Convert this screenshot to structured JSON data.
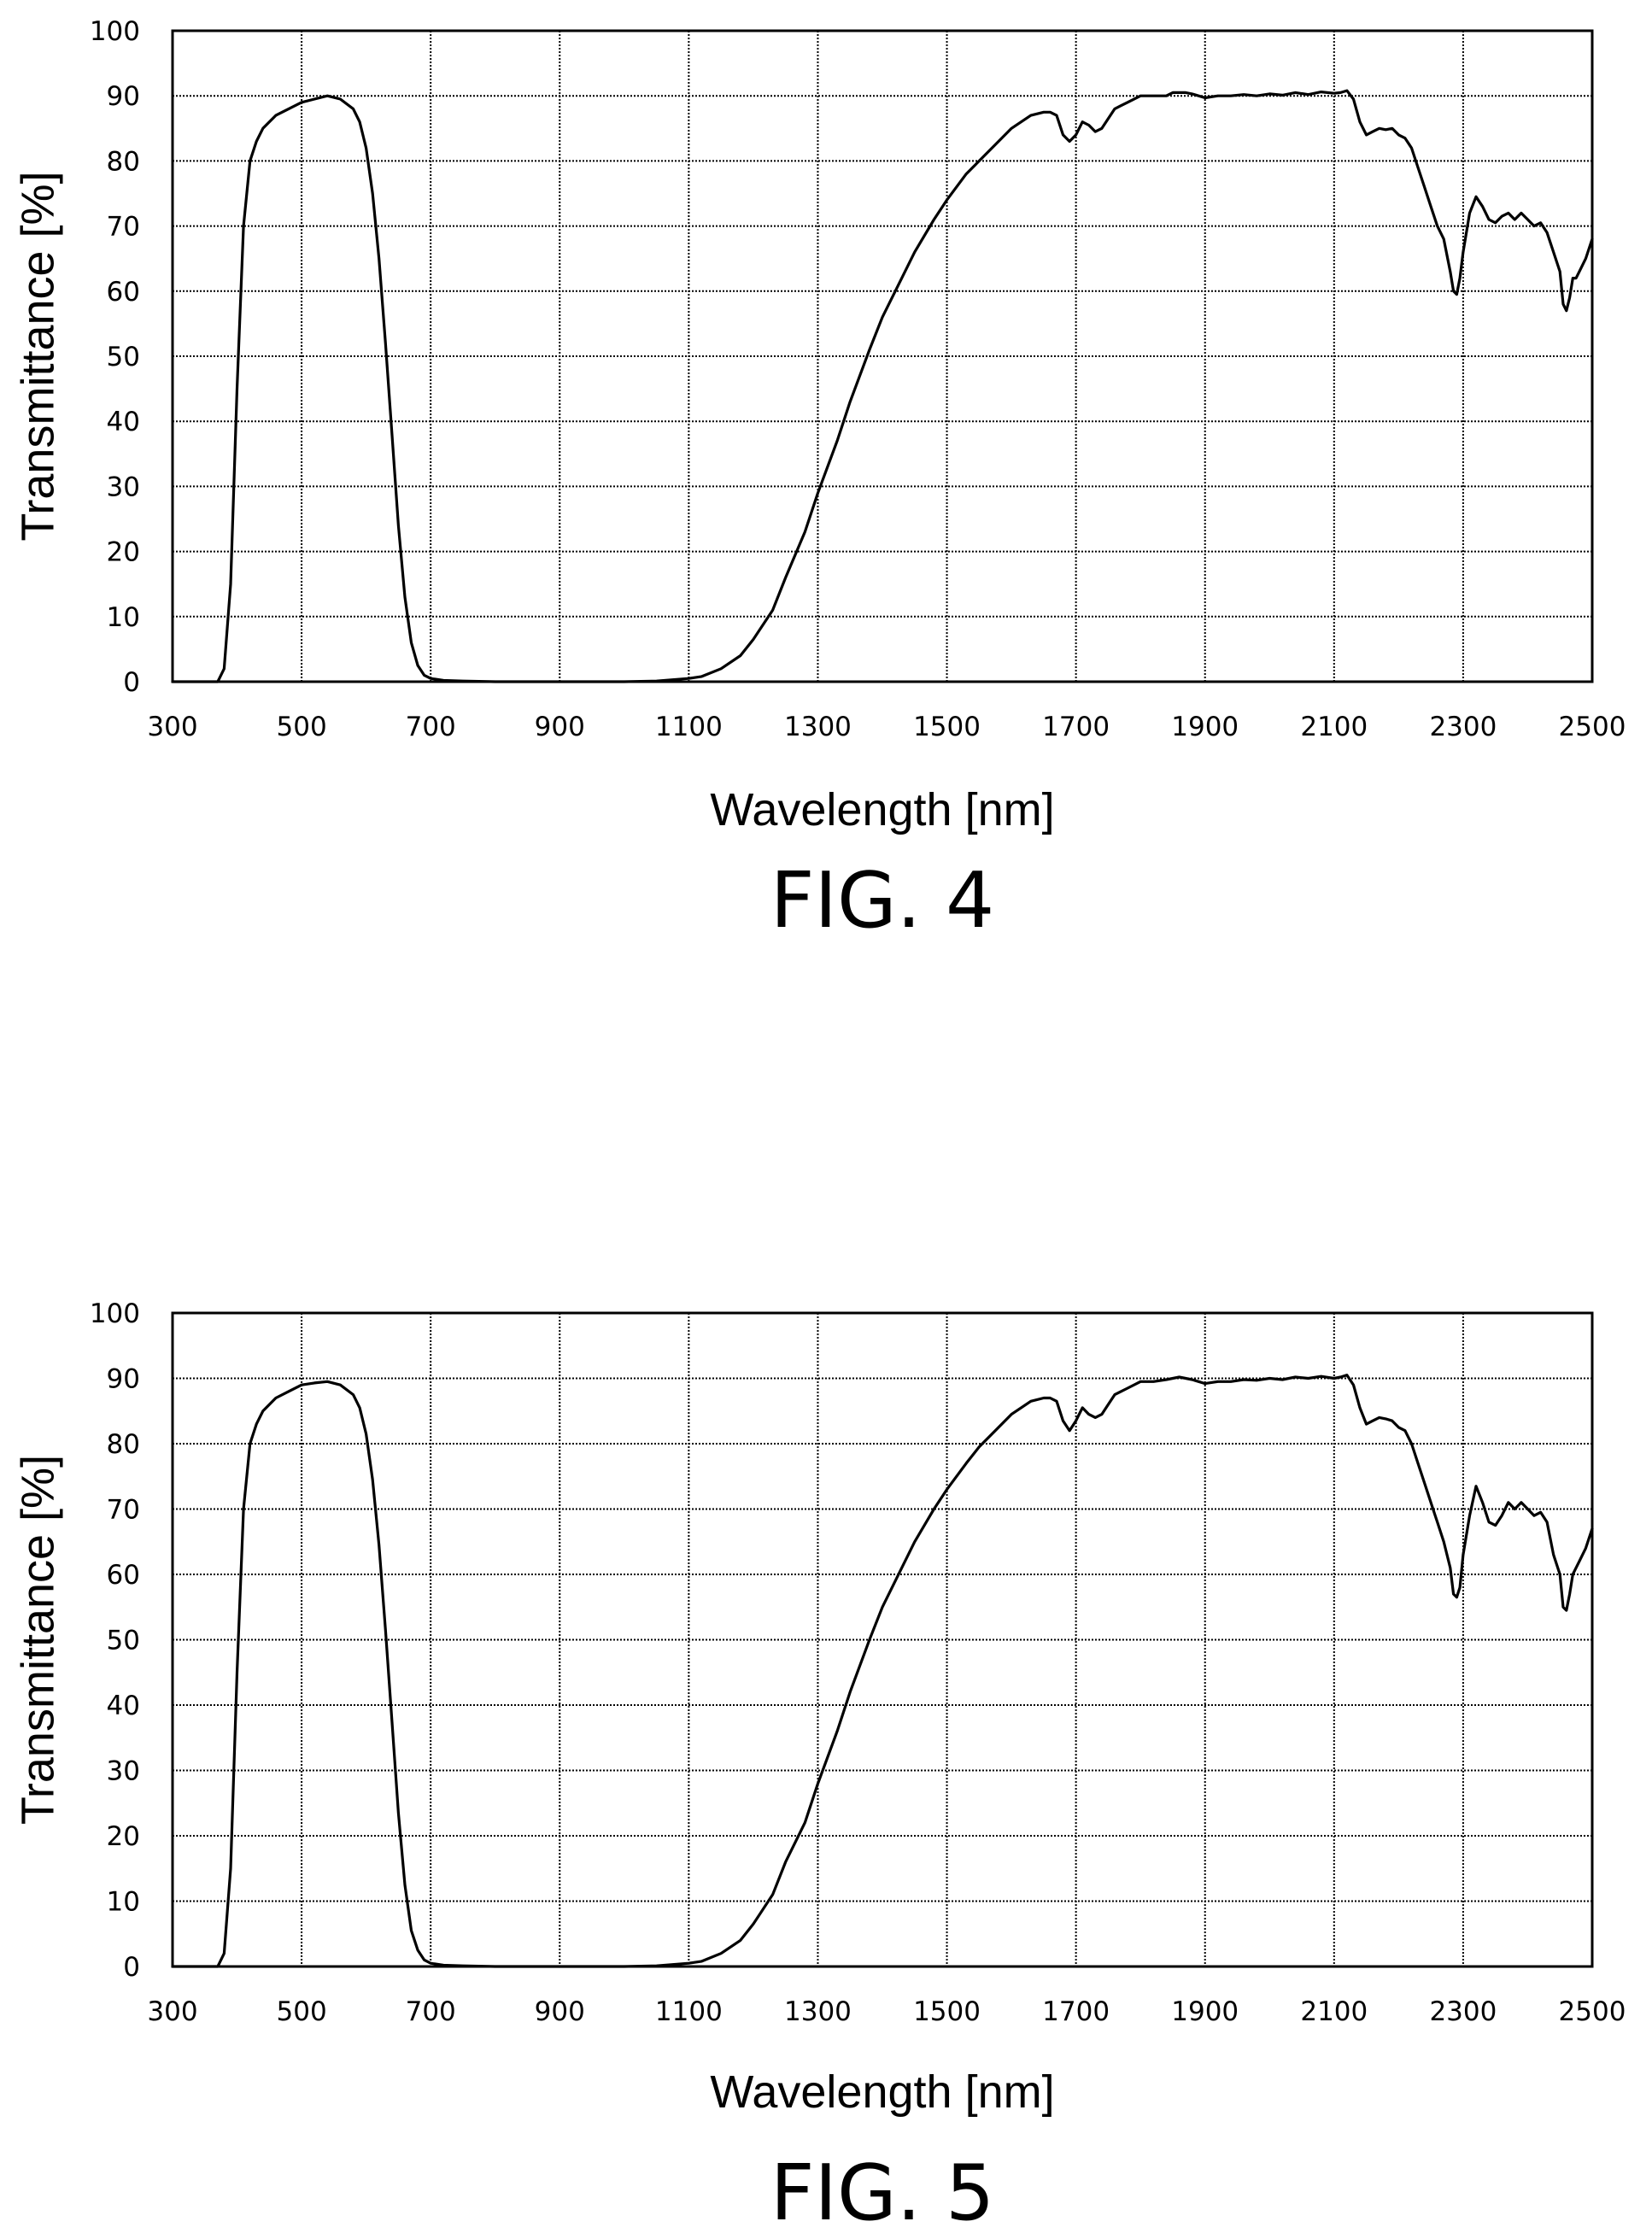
{
  "chart_data": [
    {
      "type": "line",
      "caption": "FIG. 4",
      "xlabel": "Wavelength [nm]",
      "ylabel": "Transmittance [%]",
      "xlim": [
        300,
        2500
      ],
      "ylim": [
        0,
        100
      ],
      "x_ticks": [
        "300",
        "500",
        "700",
        "900",
        "1100",
        "1300",
        "1500",
        "1700",
        "1900",
        "2100",
        "2300",
        "2500"
      ],
      "y_ticks": [
        "0",
        "10",
        "20",
        "30",
        "40",
        "50",
        "60",
        "70",
        "80",
        "90",
        "100"
      ],
      "grid": true,
      "series": [
        {
          "x": [
            300,
            370,
            380,
            390,
            400,
            410,
            420,
            430,
            440,
            460,
            480,
            500,
            520,
            540,
            560,
            580,
            590,
            600,
            610,
            620,
            630,
            640,
            650,
            660,
            670,
            680,
            690,
            700,
            720,
            750,
            800,
            900,
            1000,
            1050,
            1100,
            1120,
            1150,
            1180,
            1200,
            1230,
            1250,
            1280,
            1300,
            1330,
            1350,
            1380,
            1400,
            1430,
            1450,
            1480,
            1500,
            1530,
            1550,
            1580,
            1600,
            1630,
            1650,
            1660,
            1670,
            1680,
            1690,
            1700,
            1710,
            1720,
            1730,
            1740,
            1750,
            1760,
            1770,
            1780,
            1800,
            1820,
            1840,
            1850,
            1860,
            1870,
            1880,
            1890,
            1900,
            1920,
            1940,
            1960,
            1980,
            2000,
            2020,
            2040,
            2060,
            2080,
            2100,
            2110,
            2120,
            2130,
            2140,
            2150,
            2160,
            2170,
            2180,
            2190,
            2200,
            2210,
            2220,
            2230,
            2240,
            2250,
            2260,
            2270,
            2280,
            2285,
            2290,
            2295,
            2300,
            2310,
            2320,
            2330,
            2340,
            2350,
            2360,
            2370,
            2380,
            2390,
            2400,
            2410,
            2420,
            2430,
            2440,
            2450,
            2455,
            2460,
            2465,
            2470,
            2475,
            2480,
            2490,
            2500
          ],
          "values": [
            0,
            0,
            2,
            15,
            45,
            70,
            80,
            83,
            85,
            87,
            88,
            89,
            89.5,
            90,
            89.5,
            88,
            86,
            82,
            75,
            65,
            52,
            38,
            24,
            13,
            6,
            2.5,
            1,
            0.5,
            0.2,
            0.1,
            0,
            0,
            0,
            0.1,
            0.5,
            0.8,
            2,
            4,
            6.5,
            11,
            16,
            23,
            29,
            37,
            43,
            51,
            56,
            62,
            66,
            71,
            74,
            78,
            80,
            83,
            85,
            87,
            87.5,
            87.5,
            87,
            84,
            83,
            84,
            86,
            85.5,
            84.5,
            85,
            86.5,
            88,
            88.5,
            89,
            90,
            90,
            90,
            90.5,
            90.5,
            90.5,
            90.3,
            90,
            89.7,
            90,
            90,
            90.2,
            90,
            90.3,
            90.1,
            90.5,
            90.2,
            90.6,
            90.4,
            90.5,
            90.8,
            89.5,
            86,
            84,
            84.5,
            85,
            84.8,
            85,
            84,
            83.5,
            82,
            79,
            76,
            73,
            70,
            68,
            63,
            60,
            59.5,
            62,
            66,
            72,
            74.5,
            73,
            71,
            70.5,
            71.5,
            72,
            71,
            72,
            71,
            70,
            70.5,
            69,
            66,
            63,
            58,
            57,
            59,
            62,
            62,
            63,
            65,
            68
          ]
        }
      ]
    },
    {
      "type": "line",
      "caption": "FIG. 5",
      "xlabel": "Wavelength [nm]",
      "ylabel": "Transmittance [%]",
      "xlim": [
        300,
        2500
      ],
      "ylim": [
        0,
        100
      ],
      "x_ticks": [
        "300",
        "500",
        "700",
        "900",
        "1100",
        "1300",
        "1500",
        "1700",
        "1900",
        "2100",
        "2300",
        "2500"
      ],
      "y_ticks": [
        "0",
        "10",
        "20",
        "30",
        "40",
        "50",
        "60",
        "70",
        "80",
        "90",
        "100"
      ],
      "grid": true,
      "series": [
        {
          "x": [
            300,
            370,
            380,
            390,
            400,
            410,
            420,
            430,
            440,
            460,
            480,
            500,
            520,
            540,
            560,
            580,
            590,
            600,
            610,
            620,
            630,
            640,
            650,
            660,
            670,
            680,
            690,
            700,
            720,
            750,
            800,
            900,
            1000,
            1050,
            1100,
            1120,
            1150,
            1180,
            1200,
            1230,
            1250,
            1280,
            1300,
            1330,
            1350,
            1380,
            1400,
            1430,
            1450,
            1480,
            1500,
            1530,
            1550,
            1580,
            1600,
            1630,
            1650,
            1660,
            1670,
            1680,
            1690,
            1700,
            1710,
            1720,
            1730,
            1740,
            1750,
            1760,
            1770,
            1780,
            1800,
            1820,
            1840,
            1850,
            1860,
            1870,
            1880,
            1890,
            1900,
            1920,
            1940,
            1960,
            1980,
            2000,
            2020,
            2040,
            2060,
            2080,
            2100,
            2110,
            2120,
            2130,
            2140,
            2150,
            2160,
            2170,
            2180,
            2190,
            2200,
            2210,
            2220,
            2230,
            2240,
            2250,
            2260,
            2270,
            2280,
            2285,
            2290,
            2295,
            2300,
            2310,
            2320,
            2330,
            2340,
            2350,
            2360,
            2370,
            2380,
            2390,
            2400,
            2410,
            2420,
            2430,
            2440,
            2450,
            2455,
            2460,
            2465,
            2470,
            2475,
            2480,
            2490,
            2500
          ],
          "values": [
            0,
            0,
            2,
            15,
            45,
            70,
            80,
            83,
            85,
            87,
            88,
            89,
            89.3,
            89.5,
            89,
            87.5,
            85.5,
            81.5,
            74.5,
            64.5,
            51.5,
            37.5,
            23.5,
            12.5,
            5.5,
            2.5,
            1,
            0.5,
            0.2,
            0.1,
            0,
            0,
            0,
            0.1,
            0.5,
            0.8,
            2,
            4,
            6.5,
            11,
            16,
            22,
            28,
            36,
            42,
            50,
            55,
            61,
            65,
            70,
            73,
            77,
            79.5,
            82.5,
            84.5,
            86.5,
            87,
            87,
            86.5,
            83.5,
            82,
            83.5,
            85.5,
            84.5,
            84,
            84.5,
            86,
            87.5,
            88,
            88.5,
            89.5,
            89.5,
            89.8,
            90,
            90.2,
            90,
            89.8,
            89.5,
            89.2,
            89.5,
            89.5,
            89.8,
            89.7,
            90,
            89.8,
            90.2,
            90,
            90.3,
            90,
            90.2,
            90.5,
            89,
            85.5,
            83,
            83.5,
            84,
            83.8,
            83.5,
            82.5,
            82,
            80,
            77,
            74,
            71,
            68,
            65,
            61,
            57,
            56.5,
            58,
            63,
            69,
            73.5,
            71,
            68,
            67.5,
            69,
            71,
            70,
            71,
            70,
            69,
            69.5,
            68,
            63,
            60,
            55,
            54.5,
            57,
            60,
            61,
            62,
            64,
            67
          ]
        }
      ]
    }
  ]
}
